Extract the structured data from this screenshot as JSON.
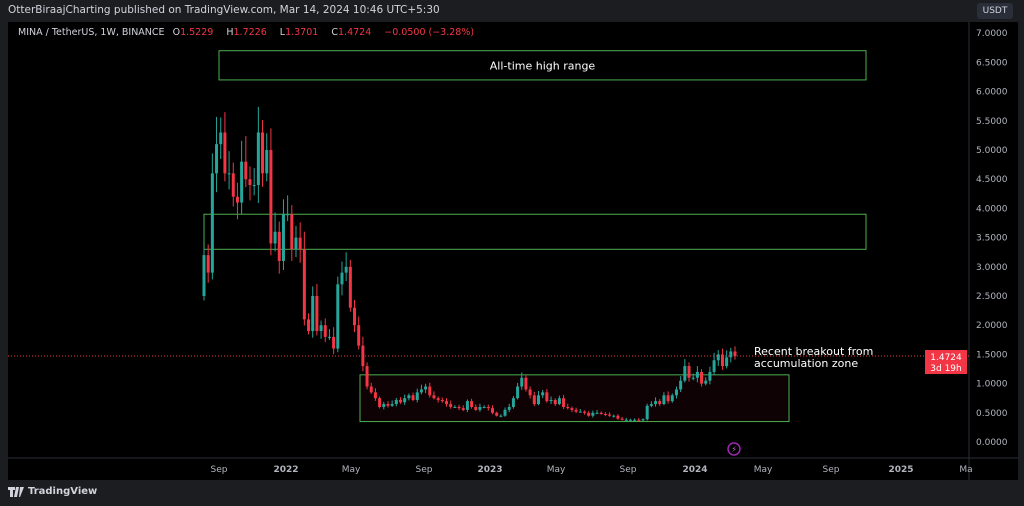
{
  "header": {
    "published": "OtterBiraajCharting published on TradingView.com, Mar 14, 2024 10:46 UTC+5:30"
  },
  "legend": {
    "symbol": "MINA / TetherUS, 1W, BINANCE",
    "o_label": "O",
    "o": "1.5229",
    "h_label": "H",
    "h": "1.7226",
    "l_label": "L",
    "l": "1.3701",
    "c_label": "C",
    "c": "1.4724",
    "change": "−0.0500 (−3.28%)"
  },
  "currency_button": "USDT",
  "footer": {
    "brand": "TradingView"
  },
  "colors": {
    "up": "#26a69a",
    "down": "#f23645",
    "box": "#4caf50",
    "background": "#000000"
  },
  "chart_data": {
    "type": "candlestick",
    "interval": "1W",
    "ylim": [
      0,
      7
    ],
    "y_ticks": [
      "0.0000",
      "0.5000",
      "1.0000",
      "1.5000",
      "2.0000",
      "2.5000",
      "3.0000",
      "3.5000",
      "4.0000",
      "4.5000",
      "5.0000",
      "5.5000",
      "6.0000",
      "6.5000",
      "7.0000"
    ],
    "x_ticks": [
      "Sep",
      "2022",
      "May",
      "Sep",
      "2023",
      "May",
      "Sep",
      "2024",
      "May",
      "Sep",
      "2025",
      "Ma"
    ],
    "first_open": 2.5,
    "closes": [
      3.2,
      2.9,
      4.6,
      5.1,
      5.3,
      4.6,
      4.6,
      4.2,
      4.1,
      4.8,
      4.5,
      4.4,
      4.4,
      5.3,
      4.6,
      5.0,
      3.4,
      3.6,
      3.1,
      3.9,
      3.9,
      3.3,
      3.5,
      3.3,
      2.1,
      1.9,
      2.5,
      1.9,
      2.0,
      1.8,
      1.8,
      1.6,
      2.7,
      2.9,
      3.0,
      2.3,
      2.0,
      1.65,
      1.3,
      0.95,
      0.85,
      0.75,
      0.6,
      0.65,
      0.62,
      0.65,
      0.72,
      0.68,
      0.75,
      0.8,
      0.72,
      0.85,
      0.9,
      0.95,
      0.8,
      0.75,
      0.72,
      0.7,
      0.65,
      0.6,
      0.6,
      0.58,
      0.55,
      0.7,
      0.6,
      0.55,
      0.6,
      0.6,
      0.58,
      0.5,
      0.45,
      0.45,
      0.55,
      0.6,
      0.75,
      0.95,
      1.1,
      0.9,
      0.8,
      0.65,
      0.8,
      0.85,
      0.7,
      0.72,
      0.65,
      0.75,
      0.6,
      0.58,
      0.55,
      0.52,
      0.52,
      0.5,
      0.45,
      0.5,
      0.5,
      0.48,
      0.47,
      0.45,
      0.45,
      0.4,
      0.38,
      0.38,
      0.38,
      0.38,
      0.37,
      0.39,
      0.62,
      0.65,
      0.7,
      0.65,
      0.8,
      0.7,
      0.8,
      0.9,
      1.05,
      1.3,
      1.1,
      1.1,
      1.2,
      1.0,
      1.05,
      1.2,
      1.4,
      1.5,
      1.3,
      1.45,
      1.55,
      1.47
    ],
    "last_price": "1.4724",
    "countdown": "3d 19h",
    "zones": [
      {
        "label": "All-time high range",
        "low": 6.2,
        "high": 6.7
      },
      {
        "label": "",
        "low": 3.3,
        "high": 3.9
      },
      {
        "label": "",
        "low": 0.35,
        "high": 1.15
      }
    ],
    "annotation": [
      "Recent breakout from",
      "accumulation zone"
    ]
  }
}
